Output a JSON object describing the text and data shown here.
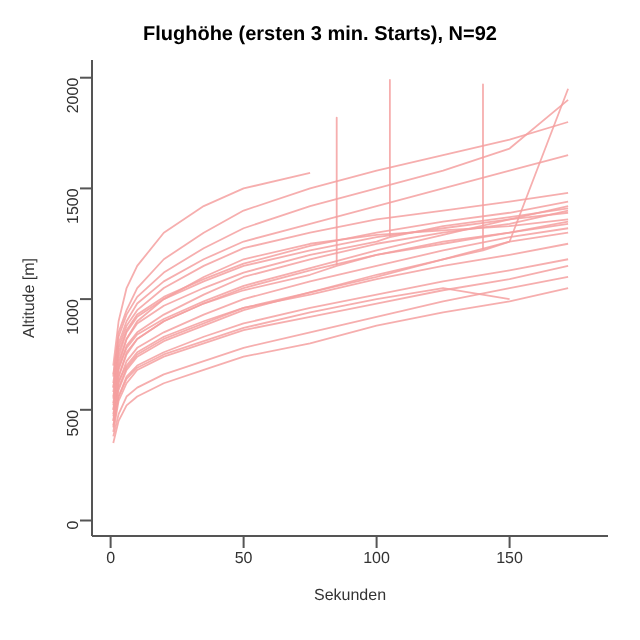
{
  "chart_data": {
    "type": "line",
    "title": "Flughöhe (ersten 3 min. Starts), N=92",
    "xlabel": "Sekunden",
    "ylabel": "Altitude [m]",
    "xlim": [
      -7,
      187
    ],
    "ylim": [
      -70,
      2080
    ],
    "xticks": [
      0,
      50,
      100,
      150
    ],
    "yticks": [
      0,
      500,
      1000,
      1500,
      2000
    ],
    "marker": "none",
    "line_style": "solid",
    "x": [
      1,
      3,
      6,
      10,
      20,
      35,
      50,
      75,
      100,
      125,
      150,
      172
    ],
    "series": [
      {
        "color": "#f4a0a0",
        "values": [
          420,
          560,
          650,
          700,
          760,
          830,
          890,
          960,
          1020,
          1080,
          1130,
          1180
        ]
      },
      {
        "color": "#f4a0a0",
        "values": [
          500,
          650,
          750,
          820,
          900,
          980,
          1050,
          1130,
          1200,
          1250,
          1300,
          1340
        ]
      },
      {
        "color": "#f4a0a0",
        "values": [
          600,
          780,
          880,
          950,
          1050,
          1150,
          1230,
          1300,
          1360,
          1400,
          1440,
          1480
        ]
      },
      {
        "color": "#f4a0a0",
        "values": [
          380,
          480,
          560,
          600,
          660,
          720,
          780,
          850,
          920,
          990,
          1050,
          1100
        ]
      },
      {
        "color": "#f4a0a0",
        "values": [
          550,
          700,
          820,
          900,
          1000,
          1100,
          1180,
          1250,
          1290,
          1310,
          1330,
          1360
        ]
      },
      {
        "color": "#f4a0a0",
        "values": [
          650,
          850,
          950,
          1050,
          1180,
          1300,
          1400,
          1500,
          1580,
          1650,
          1720,
          1800
        ]
      },
      {
        "color": "#f4a0a0",
        "values": [
          450,
          620,
          720,
          780,
          850,
          930,
          1000,
          1080,
          1150,
          1220,
          1280,
          1320
        ]
      },
      {
        "color": "#f4a0a0",
        "values": [
          350,
          450,
          520,
          560,
          620,
          680,
          740,
          800,
          880,
          940,
          990,
          1050
        ]
      },
      {
        "color": "#f4a0a0",
        "values": [
          520,
          680,
          790,
          850,
          930,
          1020,
          1100,
          1180,
          1250,
          1300,
          1340,
          1400
        ]
      },
      {
        "color": "#f4a0a0",
        "values": [
          600,
          760,
          860,
          930,
          1010,
          1090,
          1160,
          1240,
          1300,
          1350,
          1390,
          1440
        ]
      },
      {
        "color": "#f4a0a0",
        "values": [
          480,
          630,
          700,
          760,
          830,
          900,
          960,
          1030,
          1100,
          1180,
          1260,
          1950
        ]
      },
      {
        "color": "#f4a0a0",
        "values": [
          700,
          900,
          1050,
          1150,
          1300,
          1420,
          1500,
          1570,
          null,
          null,
          null,
          null
        ]
      },
      {
        "color": "#f4a0a0",
        "values": [
          430,
          560,
          640,
          690,
          750,
          810,
          870,
          940,
          1000,
          1050,
          1000,
          null
        ]
      },
      {
        "color": "#f4a0a0",
        "values": [
          400,
          540,
          620,
          680,
          740,
          800,
          860,
          920,
          980,
          1040,
          1090,
          1150
        ]
      },
      {
        "color": "#f4a0a0",
        "values": [
          620,
          800,
          900,
          980,
          1080,
          1180,
          1260,
          1340,
          1420,
          1500,
          1580,
          1650
        ]
      },
      {
        "color": "#f4a0a0",
        "values": [
          470,
          600,
          690,
          750,
          820,
          890,
          960,
          1020,
          1090,
          1150,
          1200,
          1250
        ]
      },
      {
        "color": "#f4a0a0",
        "values": [
          580,
          740,
          850,
          920,
          1000,
          1080,
          1150,
          1220,
          1280,
          1320,
          1360,
          1390
        ]
      },
      {
        "color": "#f4a0a0",
        "values": [
          530,
          690,
          780,
          840,
          910,
          990,
          1060,
          1140,
          1220,
          1290,
          1360,
          1420
        ]
      },
      {
        "color": "#f4a0a0",
        "values": [
          660,
          830,
          930,
          1010,
          1120,
          1230,
          1320,
          1420,
          1500,
          1580,
          1680,
          1900
        ]
      },
      {
        "color": "#f4a0a0",
        "x": [
          1,
          3,
          6,
          10,
          20,
          35,
          50,
          75,
          85,
          85,
          85,
          100,
          125,
          150,
          172
        ],
        "values": [
          500,
          650,
          760,
          820,
          900,
          980,
          1040,
          1110,
          1150,
          1820,
          1150,
          1200,
          1260,
          1300,
          1350
        ]
      },
      {
        "color": "#f4a0a0",
        "x": [
          1,
          3,
          6,
          10,
          20,
          35,
          50,
          75,
          100,
          105,
          105,
          105,
          125,
          150,
          172
        ],
        "values": [
          560,
          720,
          820,
          890,
          970,
          1050,
          1120,
          1200,
          1260,
          1280,
          1990,
          1280,
          1330,
          1370,
          1410
        ]
      },
      {
        "color": "#f4a0a0",
        "x": [
          1,
          3,
          6,
          10,
          20,
          35,
          50,
          75,
          100,
          125,
          140,
          140,
          140,
          150,
          172
        ],
        "values": [
          450,
          590,
          680,
          740,
          810,
          880,
          950,
          1030,
          1110,
          1180,
          1220,
          1970,
          1220,
          1260,
          1300
        ]
      }
    ]
  }
}
